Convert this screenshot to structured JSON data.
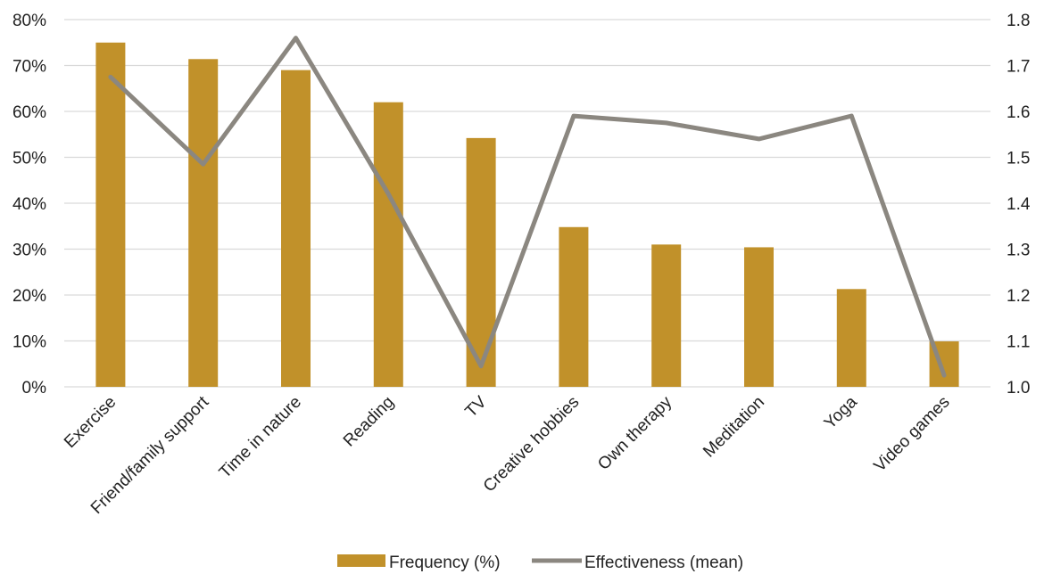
{
  "chart_data": {
    "type": "bar",
    "categories": [
      "Exercise",
      "Friend/family support",
      "Time in nature",
      "Reading",
      "TV",
      "Creative hobbies",
      "Own therapy",
      "Meditation",
      "Yoga",
      "Video games"
    ],
    "series": [
      {
        "name": "Frequency (%)",
        "type": "bar",
        "axis": "left",
        "values": [
          75,
          71.4,
          69,
          62,
          54.2,
          34.8,
          31,
          30.4,
          21.3,
          9.9
        ]
      },
      {
        "name": "Effectiveness (mean)",
        "type": "line",
        "axis": "right",
        "values": [
          1.675,
          1.485,
          1.76,
          1.42,
          1.045,
          1.59,
          1.575,
          1.54,
          1.59,
          1.025
        ]
      }
    ],
    "y_left": {
      "ylim": [
        0,
        80
      ],
      "ticks": [
        "0%",
        "10%",
        "20%",
        "30%",
        "40%",
        "50%",
        "60%",
        "70%",
        "80%"
      ]
    },
    "y_right": {
      "ylim": [
        1.0,
        1.8
      ],
      "ticks": [
        "1.0",
        "1.1",
        "1.2",
        "1.3",
        "1.4",
        "1.5",
        "1.6",
        "1.7",
        "1.8"
      ]
    },
    "grid": true,
    "legend": "bottom-center",
    "colors": {
      "bar": "#C1912A",
      "line": "#8B8780",
      "grid": "#D9D9D9",
      "text": "#222222"
    }
  }
}
